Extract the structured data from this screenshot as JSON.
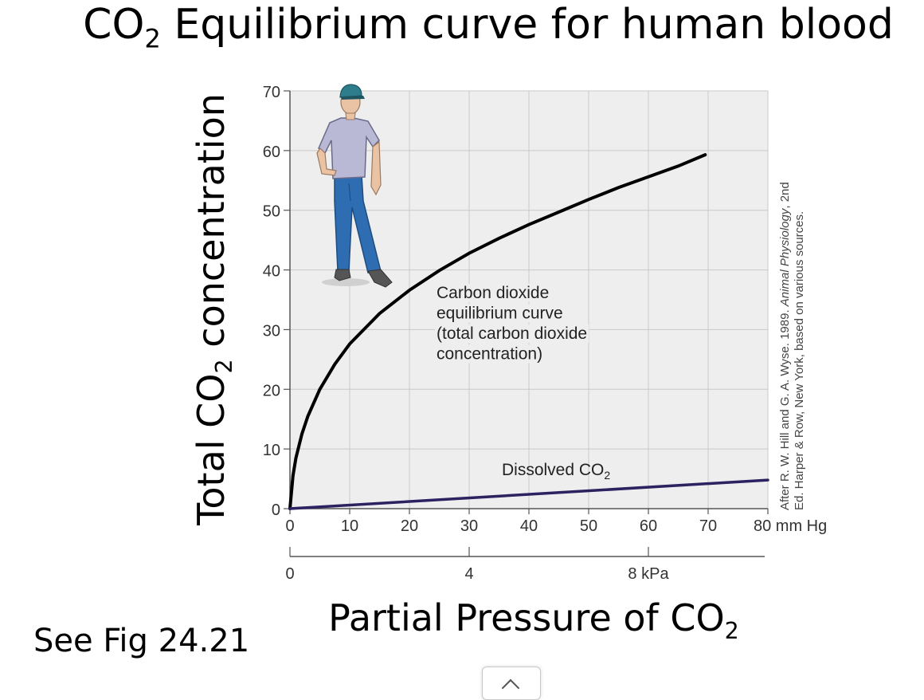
{
  "slide": {
    "title_prefix": "CO",
    "title_sub": "2",
    "title_suffix": " Equilibrium curve for human blood",
    "see_fig": "See Fig 24.21",
    "y_title_prefix": "Total CO",
    "y_title_sub": "2",
    "y_title_suffix": " concentration",
    "x_title_prefix": "Partial Pressure of CO",
    "x_title_sub": "2"
  },
  "chart_data": {
    "type": "line",
    "x_unit_label": "mm Hg",
    "xlim": [
      0,
      80
    ],
    "ylim": [
      0,
      70
    ],
    "x_ticks": [
      0,
      10,
      20,
      30,
      40,
      50,
      60,
      70,
      80
    ],
    "y_ticks": [
      0,
      10,
      20,
      30,
      40,
      50,
      60,
      70
    ],
    "kpa_ticks": [
      {
        "mmhg": 0,
        "label": "0"
      },
      {
        "mmhg": 30,
        "label": "4"
      },
      {
        "mmhg": 60,
        "label": "8 kPa"
      }
    ],
    "grid": true,
    "background": "#eeeeee",
    "series": [
      {
        "name": "Carbon dioxide equilibrium curve (total carbon dioxide concentration)",
        "color": "#000000",
        "x": [
          0,
          0.5,
          1,
          2,
          3,
          5,
          7.5,
          10,
          15,
          20,
          25,
          30,
          35,
          40,
          45,
          50,
          55,
          60,
          65,
          69.5
        ],
        "y": [
          0,
          5.5,
          8.5,
          12.5,
          15.5,
          20,
          24.2,
          27.6,
          32.7,
          36.6,
          39.9,
          42.8,
          45.3,
          47.6,
          49.7,
          51.8,
          53.8,
          55.6,
          57.4,
          59.3
        ]
      },
      {
        "name": "Dissolved CO2",
        "color": "#2b2260",
        "x": [
          0,
          80
        ],
        "y": [
          0,
          4.8
        ]
      }
    ],
    "annotations": {
      "equilibrium_lines": [
        "Carbon dioxide",
        "equilibrium curve",
        "(total carbon dioxide",
        "concentration)"
      ],
      "dissolved_prefix": "Dissolved CO",
      "dissolved_sub": "2"
    },
    "credit_line1_prefix": "After R. W. Hill and G. A. Wyse. 1989. ",
    "credit_line1_italic": "Animal Physiology",
    "credit_line1_suffix": ", 2nd",
    "credit_line2": "Ed. Harper & Row, New York, based on various sources.",
    "illustration": "man-standing-figure"
  }
}
